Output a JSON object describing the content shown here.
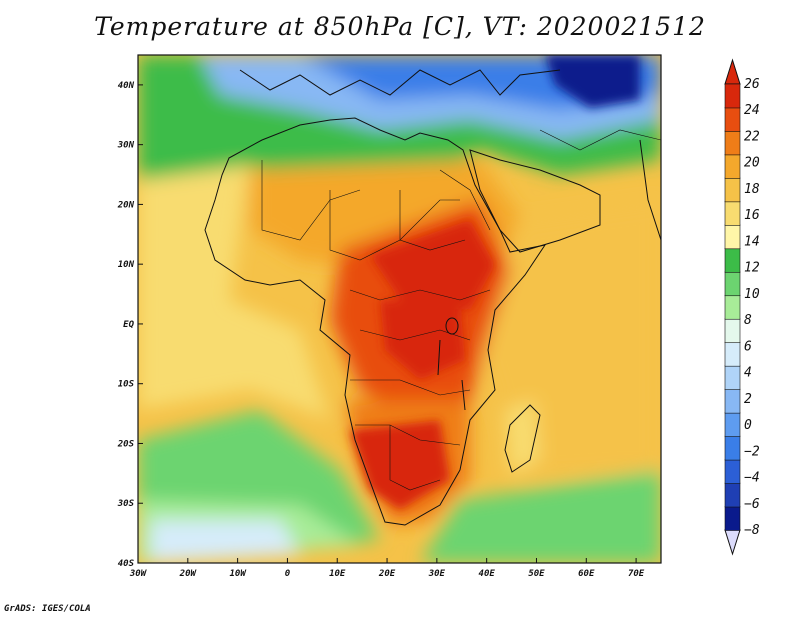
{
  "title": "Temperature at 850hPa [C], VT: 2020021512",
  "credit": "GrADS: IGES/COLA",
  "map": {
    "lon_range": [
      -30,
      75
    ],
    "lat_range": [
      -40,
      45
    ],
    "lon_ticks": [
      {
        "value": -30,
        "label": "30W"
      },
      {
        "value": -20,
        "label": "20W"
      },
      {
        "value": -10,
        "label": "10W"
      },
      {
        "value": 0,
        "label": "0"
      },
      {
        "value": 10,
        "label": "10E"
      },
      {
        "value": 20,
        "label": "20E"
      },
      {
        "value": 30,
        "label": "30E"
      },
      {
        "value": 40,
        "label": "40E"
      },
      {
        "value": 50,
        "label": "50E"
      },
      {
        "value": 60,
        "label": "60E"
      },
      {
        "value": 70,
        "label": "70E"
      }
    ],
    "lat_ticks": [
      {
        "value": 40,
        "label": "40N"
      },
      {
        "value": 30,
        "label": "30N"
      },
      {
        "value": 20,
        "label": "20N"
      },
      {
        "value": 10,
        "label": "10N"
      },
      {
        "value": 0,
        "label": "EQ"
      },
      {
        "value": -10,
        "label": "10S"
      },
      {
        "value": -20,
        "label": "20S"
      },
      {
        "value": -30,
        "label": "30S"
      },
      {
        "value": -40,
        "label": "40S"
      }
    ]
  },
  "colorbar": {
    "levels": [
      "-8",
      "-6",
      "-4",
      "-2",
      "0",
      "2",
      "4",
      "6",
      "8",
      "10",
      "12",
      "14",
      "16",
      "18",
      "20",
      "22",
      "24",
      "26"
    ],
    "colors": [
      "#0a1a8c",
      "#1f3fb4",
      "#2c5fd6",
      "#3a7ee8",
      "#5e9cf0",
      "#88b8f4",
      "#b0d4f8",
      "#d6ecfa",
      "#e4f8ec",
      "#a8ec98",
      "#6cd470",
      "#3cbc48",
      "#fff6a8",
      "#f8dc70",
      "#f5c248",
      "#f4a82c",
      "#ef7d18",
      "#e84e10",
      "#d8280c"
    ],
    "lower_extend_color": "#dcdcfc",
    "upper_extend_color": "#d8280c"
  },
  "field_colors": {
    "ocean_south": "#6cd470",
    "ocean_southwest": "#a8ec98",
    "antarctic": "#d6ecfa",
    "atlantic_warm": "#f5c248",
    "atlantic_mid": "#f8dc70",
    "sahara": "#f4a82c",
    "north_africa": "#3cbc48",
    "europe": "#88b8f4",
    "europe_cold": "#3a7ee8",
    "central_asia": "#0a1a8c",
    "indian_ocean": "#f5c248",
    "hot_east_africa": "#e84e10",
    "hot_core": "#d8280c",
    "hot_south": "#ef7d18",
    "madagascar": "#f8dc70"
  }
}
